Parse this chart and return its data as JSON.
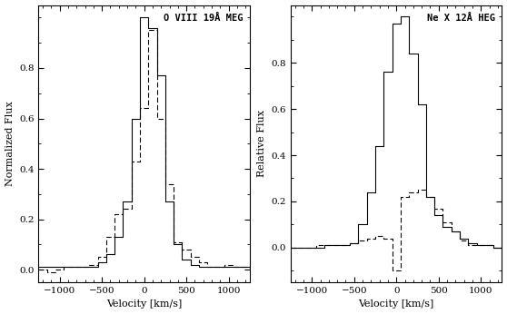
{
  "title_left": "O VIII 19Å MEG",
  "title_right": "Ne X 12Å HEG",
  "ylabel_left": "Normalized Flux",
  "ylabel_right": "Relative Flux",
  "xlabel": "Velocity [km/s]",
  "xlim": [
    -1250,
    1250
  ],
  "ylim_left": [
    -0.05,
    1.05
  ],
  "ylim_right": [
    -0.15,
    1.05
  ],
  "xticks": [
    -1000,
    -500,
    0,
    500,
    1000
  ],
  "yticks_left": [
    0.0,
    0.2,
    0.4,
    0.6,
    0.8
  ],
  "yticks_right": [
    0.0,
    0.2,
    0.4,
    0.6,
    0.8
  ],
  "left_solid_bins": [
    -1200,
    -1100,
    -1000,
    -900,
    -800,
    -700,
    -600,
    -500,
    -400,
    -300,
    -200,
    -100,
    0,
    100,
    200,
    300,
    400,
    500,
    600,
    700,
    800,
    900,
    1000,
    1100,
    1200
  ],
  "left_solid_y": [
    0.01,
    0.01,
    0.01,
    0.01,
    0.01,
    0.01,
    0.01,
    0.03,
    0.06,
    0.13,
    0.27,
    0.6,
    1.0,
    0.96,
    0.77,
    0.27,
    0.1,
    0.04,
    0.02,
    0.01,
    0.01,
    0.01,
    0.01,
    0.01,
    0.01
  ],
  "left_dashed_bins": [
    -1200,
    -1100,
    -1000,
    -900,
    -800,
    -700,
    -600,
    -500,
    -400,
    -300,
    -200,
    -100,
    0,
    100,
    200,
    300,
    400,
    500,
    600,
    700,
    800,
    900,
    1000,
    1100,
    1200
  ],
  "left_dashed_y": [
    0.0,
    -0.01,
    0.0,
    0.01,
    0.01,
    0.01,
    0.02,
    0.05,
    0.13,
    0.22,
    0.24,
    0.43,
    0.64,
    0.95,
    0.6,
    0.34,
    0.11,
    0.08,
    0.05,
    0.03,
    0.01,
    0.01,
    0.02,
    0.01,
    0.01
  ],
  "right_solid_bins": [
    -1200,
    -1100,
    -1000,
    -900,
    -800,
    -700,
    -600,
    -500,
    -400,
    -300,
    -200,
    -100,
    0,
    100,
    200,
    300,
    400,
    500,
    600,
    700,
    800,
    900,
    1000,
    1100,
    1200
  ],
  "right_solid_y": [
    0.0,
    0.0,
    0.0,
    0.0,
    0.01,
    0.01,
    0.01,
    0.02,
    0.1,
    0.24,
    0.44,
    0.76,
    0.97,
    1.0,
    0.84,
    0.62,
    0.22,
    0.14,
    0.09,
    0.07,
    0.04,
    0.02,
    0.01,
    0.01,
    0.0
  ],
  "right_dashed_bins": [
    -1200,
    -1100,
    -1000,
    -900,
    -800,
    -700,
    -600,
    -500,
    -400,
    -300,
    -200,
    -100,
    0,
    100,
    200,
    300,
    400,
    500,
    600,
    700,
    800,
    900,
    1000,
    1100,
    1200
  ],
  "right_dashed_y": [
    0.0,
    0.0,
    0.0,
    0.01,
    0.01,
    0.01,
    0.01,
    0.02,
    0.03,
    0.04,
    0.05,
    0.04,
    -0.1,
    0.22,
    0.24,
    0.25,
    0.22,
    0.17,
    0.11,
    0.07,
    0.03,
    0.01,
    0.01,
    0.01,
    0.0
  ],
  "background_color": "#ffffff",
  "linewidth": 0.8,
  "fontsize_label": 8,
  "fontsize_title": 7.5,
  "fontsize_tick": 7.5
}
